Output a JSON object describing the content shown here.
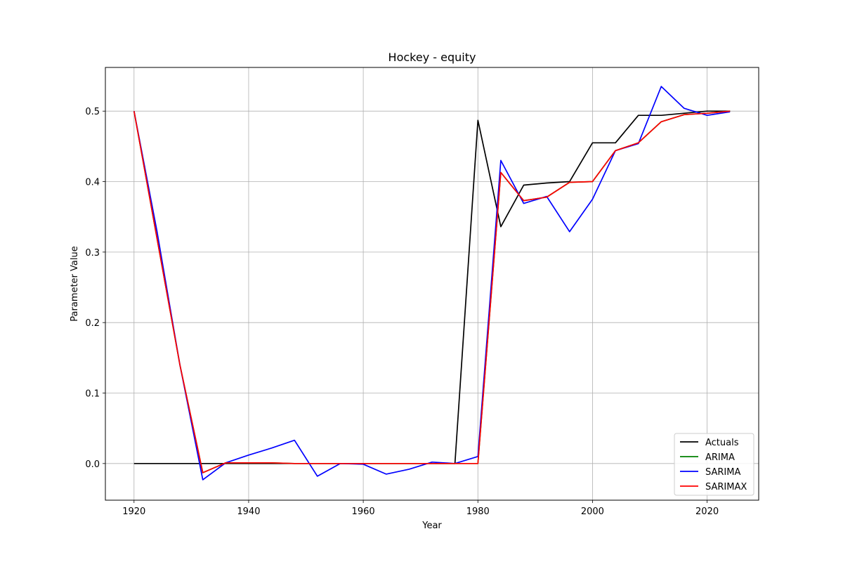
{
  "chart_data": {
    "type": "line",
    "title": "Hockey - equity",
    "xlabel": "Year",
    "ylabel": "Parameter Value",
    "xlim": [
      1915,
      2029
    ],
    "ylim": [
      -0.052,
      0.562
    ],
    "xticks": [
      1920,
      1940,
      1960,
      1980,
      2000,
      2020
    ],
    "yticks": [
      0.0,
      0.1,
      0.2,
      0.3,
      0.4,
      0.5
    ],
    "ytick_labels": [
      "0.0",
      "0.1",
      "0.2",
      "0.3",
      "0.4",
      "0.5"
    ],
    "grid": true,
    "legend_position": "lower right",
    "x": [
      1920,
      1924,
      1928,
      1932,
      1936,
      1940,
      1944,
      1948,
      1952,
      1956,
      1960,
      1964,
      1968,
      1972,
      1976,
      1980,
      1984,
      1988,
      1992,
      1996,
      2000,
      2004,
      2008,
      2012,
      2016,
      2020,
      2024
    ],
    "series": [
      {
        "name": "Actuals",
        "color": "#000000",
        "values": [
          0.0,
          0.0,
          0.0,
          0.0,
          0.0,
          0.0,
          0.0,
          0.0,
          0.0,
          0.0,
          0.0,
          0.0,
          0.0,
          0.0,
          0.0,
          0.487,
          0.336,
          0.395,
          0.398,
          0.4,
          0.455,
          0.455,
          0.494,
          0.494,
          0.497,
          0.5,
          0.5
        ]
      },
      {
        "name": "ARIMA",
        "color": "#008000",
        "values": [
          0.5,
          0.32,
          0.14,
          -0.013,
          0.001,
          0.001,
          0.001,
          0.0,
          0.0,
          0.0,
          0.0,
          0.0,
          0.0,
          0.0,
          0.0,
          0.0,
          0.413,
          0.373,
          0.378,
          0.399,
          0.4,
          0.444,
          0.455,
          0.485,
          0.495,
          0.497,
          0.5
        ]
      },
      {
        "name": "SARIMA",
        "color": "#0000ff",
        "values": [
          0.5,
          0.33,
          0.14,
          -0.023,
          0.001,
          0.012,
          0.022,
          0.033,
          -0.018,
          0.0,
          -0.001,
          -0.015,
          -0.008,
          0.002,
          0.0,
          0.01,
          0.43,
          0.369,
          0.379,
          0.329,
          0.375,
          0.444,
          0.454,
          0.535,
          0.504,
          0.494,
          0.499
        ]
      },
      {
        "name": "SARIMAX",
        "color": "#ff0000",
        "values": [
          0.5,
          0.32,
          0.14,
          -0.013,
          0.001,
          0.001,
          0.001,
          0.0,
          0.0,
          0.0,
          0.0,
          0.0,
          0.0,
          0.0,
          0.0,
          0.0,
          0.413,
          0.373,
          0.378,
          0.399,
          0.4,
          0.444,
          0.455,
          0.485,
          0.495,
          0.497,
          0.5
        ]
      }
    ]
  }
}
